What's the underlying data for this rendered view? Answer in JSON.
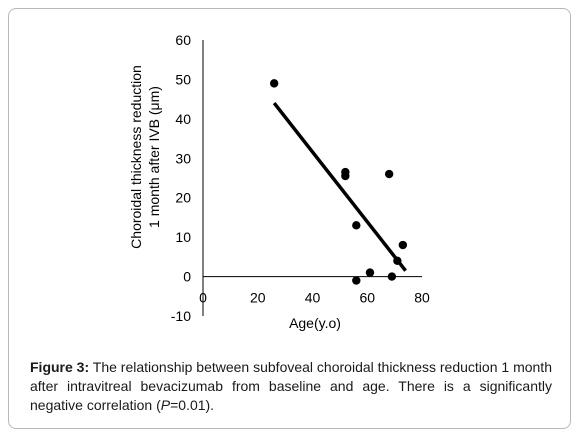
{
  "chart_data": {
    "type": "scatter",
    "xlabel": "Age(y.o)",
    "ylabel_lines": [
      "Choroidal thickness reduction",
      "1 month after IVB (μm)"
    ],
    "xlim": [
      0,
      80
    ],
    "ylim": [
      -10,
      60
    ],
    "xticks": [
      0,
      20,
      40,
      60,
      80
    ],
    "yticks": [
      -10,
      0,
      10,
      20,
      30,
      40,
      50,
      60
    ],
    "series": [
      {
        "points": [
          {
            "x": 26,
            "y": 49
          },
          {
            "x": 52,
            "y": 26.5
          },
          {
            "x": 52,
            "y": 25.5
          },
          {
            "x": 56,
            "y": 13
          },
          {
            "x": 56,
            "y": -1
          },
          {
            "x": 61,
            "y": 1
          },
          {
            "x": 68,
            "y": 26
          },
          {
            "x": 69,
            "y": 0
          },
          {
            "x": 71,
            "y": 4
          },
          {
            "x": 73,
            "y": 8
          }
        ]
      }
    ],
    "trendline": {
      "x": [
        26,
        74
      ],
      "y": [
        44,
        1.5
      ]
    },
    "grid": false,
    "colors": {
      "points": "#000000",
      "trendline": "#000000",
      "axes": "#000000"
    }
  },
  "caption": {
    "label": "Figure 3:",
    "text_before_p": " The relationship between subfoveal choroidal thickness reduction 1 month after intravitreal bevacizumab from baseline and age. There is a significantly negative correlation (",
    "p_symbol": "P",
    "text_after_p": "=0.01)."
  }
}
